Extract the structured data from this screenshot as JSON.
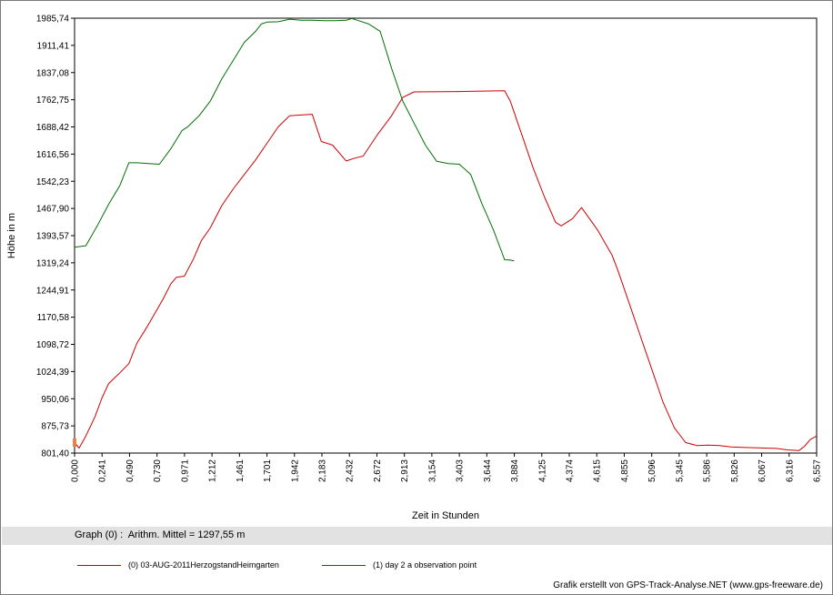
{
  "chart_data": {
    "type": "line",
    "title": "",
    "ylabel": "Höhe in m",
    "xlabel": "Zeit in Stunden",
    "xlim": [
      0,
      6.557
    ],
    "ylim": [
      801.4,
      1985.74
    ],
    "yticks": [
      "1985,74",
      "1911,41",
      "1837,08",
      "1762,75",
      "1688,42",
      "1616,56",
      "1542,23",
      "1467,90",
      "1393,57",
      "1319,24",
      "1244,91",
      "1170,58",
      "1098,72",
      "1024,39",
      "950,06",
      "875,73",
      "801,40"
    ],
    "xticks": [
      "0,000",
      "0,241",
      "0,490",
      "0,730",
      "0,971",
      "1,212",
      "1,461",
      "1,701",
      "1,942",
      "2,183",
      "2,432",
      "2,672",
      "2,913",
      "3,154",
      "3,403",
      "3,644",
      "3,884",
      "4,125",
      "4,374",
      "4,615",
      "4,855",
      "5,096",
      "5,345",
      "5,586",
      "5,826",
      "6,067",
      "6,316",
      "6,557"
    ],
    "grid": false,
    "legend": "bottom",
    "series": [
      {
        "name": "(0) 03-AUG-2011HerzogstandHeimgarten",
        "color": "#cc0000",
        "x": [
          0.0,
          0.04,
          0.1,
          0.18,
          0.24,
          0.3,
          0.4,
          0.48,
          0.55,
          0.65,
          0.78,
          0.85,
          0.9,
          0.97,
          1.05,
          1.12,
          1.2,
          1.3,
          1.4,
          1.5,
          1.6,
          1.7,
          1.8,
          1.9,
          2.0,
          2.1,
          2.18,
          2.28,
          2.4,
          2.48,
          2.55,
          2.68,
          2.8,
          2.9,
          3.0,
          3.4,
          3.8,
          3.85,
          3.95,
          4.05,
          4.15,
          4.25,
          4.3,
          4.4,
          4.48,
          4.55,
          4.62,
          4.75,
          4.8,
          4.9,
          5.0,
          5.1,
          5.2,
          5.3,
          5.4,
          5.5,
          5.6,
          5.7,
          5.8,
          5.9,
          6.0,
          6.1,
          6.2,
          6.3,
          6.4,
          6.45,
          6.5,
          6.557
        ],
        "y": [
          830,
          815,
          848,
          900,
          950,
          990,
          1020,
          1045,
          1100,
          1150,
          1220,
          1262,
          1280,
          1283,
          1330,
          1380,
          1415,
          1475,
          1520,
          1560,
          1600,
          1645,
          1690,
          1720,
          1722,
          1724,
          1650,
          1640,
          1597,
          1605,
          1610,
          1670,
          1720,
          1770,
          1785,
          1786,
          1788,
          1760,
          1670,
          1580,
          1500,
          1430,
          1420,
          1440,
          1470,
          1440,
          1410,
          1340,
          1300,
          1210,
          1120,
          1030,
          940,
          870,
          830,
          822,
          823,
          822,
          818,
          817,
          816,
          815,
          814,
          810,
          808,
          820,
          838,
          848
        ]
      },
      {
        "name": "(1) day 2 a observation point",
        "color": "#007000",
        "x": [
          0.0,
          0.1,
          0.2,
          0.3,
          0.4,
          0.48,
          0.55,
          0.65,
          0.75,
          0.85,
          0.95,
          1.0,
          1.1,
          1.2,
          1.3,
          1.4,
          1.5,
          1.6,
          1.65,
          1.7,
          1.8,
          1.9,
          2.0,
          2.1,
          2.2,
          2.3,
          2.4,
          2.45,
          2.5,
          2.6,
          2.7,
          2.8,
          2.9,
          3.0,
          3.1,
          3.2,
          3.3,
          3.4,
          3.5,
          3.6,
          3.7,
          3.8,
          3.85,
          3.884
        ],
        "y": [
          1362,
          1366,
          1420,
          1478,
          1530,
          1592,
          1592,
          1590,
          1588,
          1630,
          1680,
          1690,
          1720,
          1760,
          1820,
          1870,
          1920,
          1950,
          1970,
          1975,
          1976,
          1983,
          1980,
          1980,
          1979,
          1979,
          1980,
          1985,
          1980,
          1970,
          1950,
          1850,
          1760,
          1700,
          1640,
          1596,
          1590,
          1588,
          1560,
          1480,
          1410,
          1328,
          1327,
          1325
        ]
      }
    ]
  },
  "stats": {
    "text": "Graph (0) :  Arithm. Mittel = 1297,55 m"
  },
  "credit": "Grafik erstellt von GPS-Track-Analyse.NET (www.gps-freeware.de)"
}
